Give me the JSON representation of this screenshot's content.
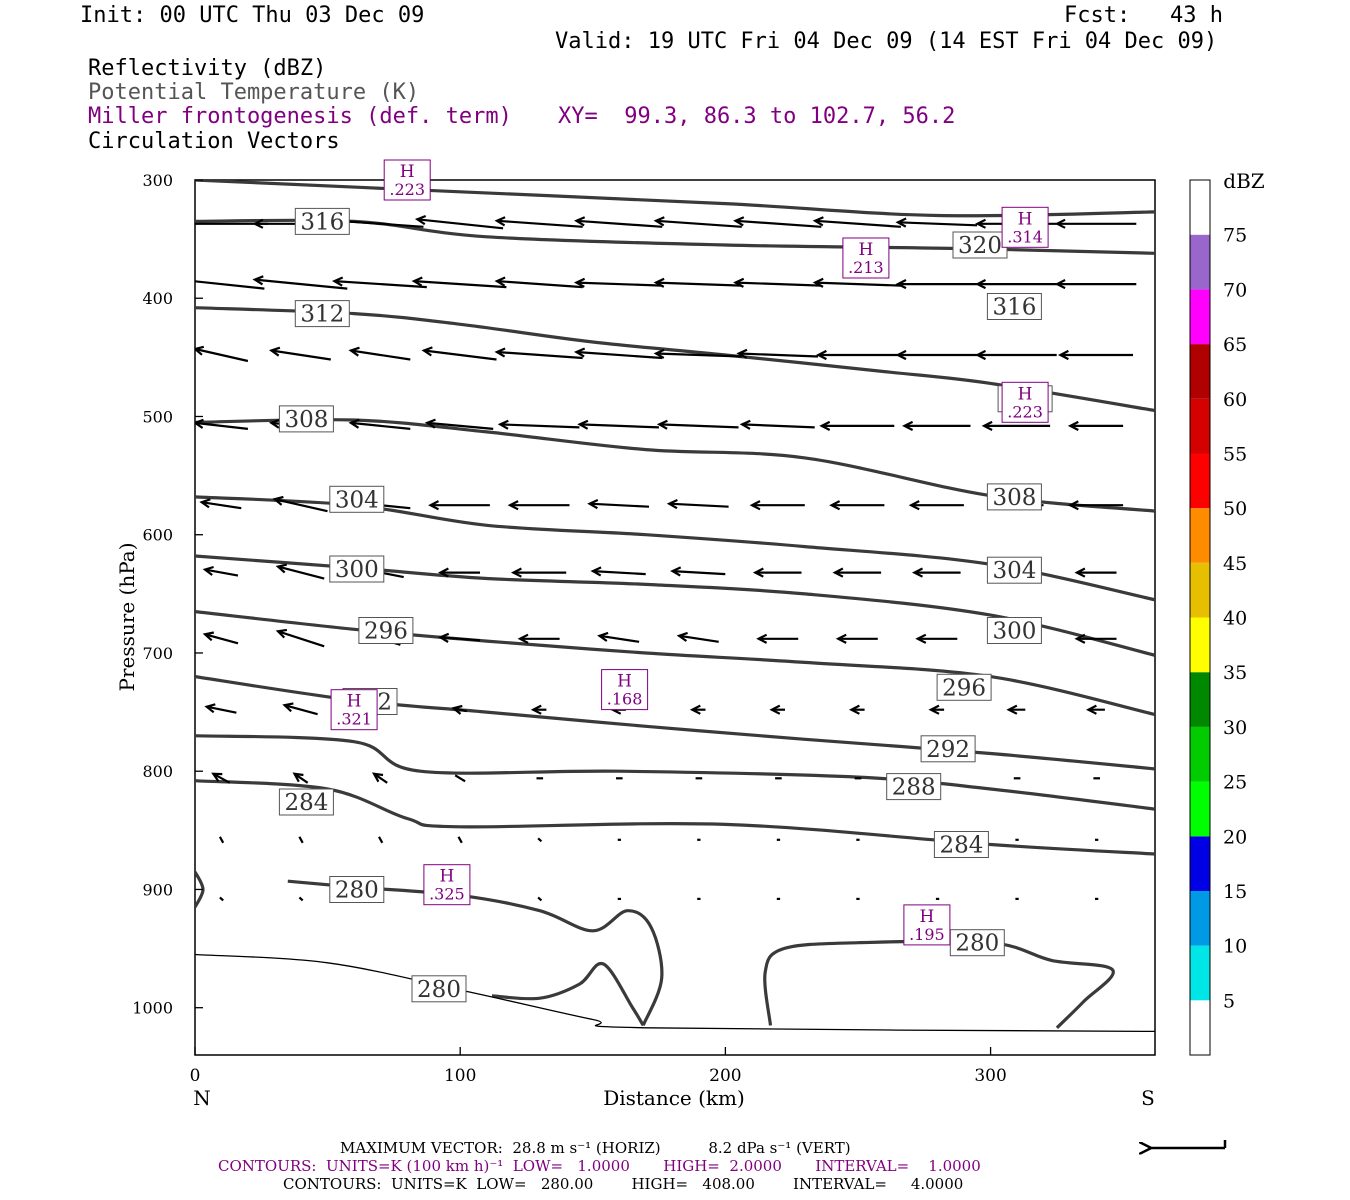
{
  "header": {
    "init": "Init: 00 UTC Thu 03 Dec 09",
    "fcst": "Fcst:   43 h",
    "valid": "Valid: 19 UTC Fri 04 Dec 09 (14 EST Fri 04 Dec 09)",
    "field1": "Reflectivity (dBZ)",
    "field2": "Potential Temperature (K)",
    "field3": "Miller frontogenesis (def. term)",
    "xy": "XY=  99.3, 86.3 to 102.7, 56.2",
    "field4": "Circulation Vectors"
  },
  "footer": {
    "max_vector": "MAXIMUM VECTOR:  28.8 m s⁻¹ (HORIZ)          8.2 dPa s⁻¹ (VERT)",
    "contours1": "CONTOURS:  UNITS=K (100 km h)⁻¹  LOW=   1.0000       HIGH=  2.0000       INTERVAL=    1.0000",
    "contours2": "CONTOURS:  UNITS=K  LOW=   280.00        HIGH=   408.00        INTERVAL=     4.0000"
  },
  "colors": {
    "theta": "#3a3a3a",
    "frontogenesis": "#800080",
    "vector": "#000000"
  },
  "chart_data": {
    "type": "cross-section",
    "xlabel": "Distance (km)",
    "ylabel": "Pressure (hPa)",
    "xlim": [
      0,
      362
    ],
    "ylim": [
      1040,
      300
    ],
    "x_ticks": [
      0,
      100,
      200,
      300
    ],
    "y_ticks": [
      300,
      400,
      500,
      600,
      700,
      800,
      900,
      1000
    ],
    "left_end_label": "N",
    "right_end_label": "S",
    "grid": false,
    "colorbar": {
      "title": "dBZ",
      "labels": [
        "5",
        "10",
        "15",
        "20",
        "25",
        "30",
        "35",
        "40",
        "45",
        "50",
        "55",
        "60",
        "65",
        "70",
        "75"
      ],
      "bins": [
        {
          "color": "#ffffff"
        },
        {
          "color": "#00e5e5"
        },
        {
          "color": "#0099e5"
        },
        {
          "color": "#0000e5"
        },
        {
          "color": "#00ff00"
        },
        {
          "color": "#00cc00"
        },
        {
          "color": "#008800"
        },
        {
          "color": "#ffff00"
        },
        {
          "color": "#e5bf00"
        },
        {
          "color": "#ff8c00"
        },
        {
          "color": "#ff0000"
        },
        {
          "color": "#d50000"
        },
        {
          "color": "#b00000"
        },
        {
          "color": "#ff00ff"
        },
        {
          "color": "#9966cc"
        },
        {
          "color": "#ffffff"
        }
      ]
    },
    "theta_contours": [
      {
        "level": 320,
        "points": [
          [
            0,
            300
          ],
          [
            100,
            310
          ],
          [
            200,
            320
          ],
          [
            280,
            330
          ],
          [
            362,
            327
          ]
        ]
      },
      {
        "level": 316,
        "points": [
          [
            0,
            335
          ],
          [
            60,
            335
          ],
          [
            110,
            348
          ],
          [
            200,
            355
          ],
          [
            290,
            358
          ],
          [
            362,
            362
          ]
        ]
      },
      {
        "level": 312,
        "points": [
          [
            0,
            408
          ],
          [
            60,
            413
          ],
          [
            100,
            422
          ],
          [
            150,
            437
          ],
          [
            200,
            448
          ],
          [
            260,
            462
          ],
          [
            300,
            472
          ],
          [
            362,
            495
          ]
        ]
      },
      {
        "level": 308,
        "points": [
          [
            0,
            505
          ],
          [
            60,
            503
          ],
          [
            110,
            513
          ],
          [
            170,
            528
          ],
          [
            230,
            535
          ],
          [
            300,
            567
          ],
          [
            362,
            580
          ]
        ]
      },
      {
        "level": 304,
        "points": [
          [
            0,
            568
          ],
          [
            60,
            575
          ],
          [
            110,
            592
          ],
          [
            170,
            600
          ],
          [
            230,
            610
          ],
          [
            300,
            625
          ],
          [
            362,
            655
          ]
        ]
      },
      {
        "level": 300,
        "points": [
          [
            0,
            618
          ],
          [
            60,
            628
          ],
          [
            110,
            637
          ],
          [
            170,
            642
          ],
          [
            230,
            650
          ],
          [
            300,
            668
          ],
          [
            362,
            702
          ]
        ]
      },
      {
        "level": 296,
        "points": [
          [
            0,
            665
          ],
          [
            60,
            680
          ],
          [
            110,
            690
          ],
          [
            170,
            700
          ],
          [
            230,
            708
          ],
          [
            300,
            720
          ],
          [
            362,
            752
          ]
        ]
      },
      {
        "level": 292,
        "points": [
          [
            0,
            720
          ],
          [
            60,
            740
          ],
          [
            110,
            750
          ],
          [
            170,
            762
          ],
          [
            230,
            773
          ],
          [
            300,
            785
          ],
          [
            362,
            798
          ]
        ]
      },
      {
        "level": 288,
        "points": [
          [
            0,
            770
          ],
          [
            60,
            775
          ],
          [
            85,
            800
          ],
          [
            160,
            800
          ],
          [
            250,
            805
          ],
          [
            300,
            815
          ],
          [
            362,
            832
          ]
        ]
      },
      {
        "level": 284,
        "points": [
          [
            0,
            808
          ],
          [
            50,
            815
          ],
          [
            80,
            840
          ],
          [
            100,
            847
          ],
          [
            200,
            845
          ],
          [
            300,
            862
          ],
          [
            362,
            870
          ]
        ]
      }
    ],
    "theta_280_segments": [
      [
        [
          0,
          885
        ],
        [
          3,
          900
        ],
        [
          0,
          915
        ]
      ],
      [
        [
          35,
          893
        ],
        [
          60,
          898
        ],
        [
          100,
          905
        ],
        [
          130,
          918
        ],
        [
          150,
          935
        ],
        [
          163,
          918
        ],
        [
          172,
          932
        ],
        [
          176,
          975
        ],
        [
          169,
          1015
        ]
      ],
      [
        [
          169,
          1015
        ],
        [
          165,
          1000
        ],
        [
          154,
          963
        ],
        [
          145,
          980
        ],
        [
          130,
          992
        ],
        [
          112,
          990
        ]
      ],
      [
        [
          217,
          1015
        ],
        [
          215,
          970
        ],
        [
          222,
          950
        ],
        [
          250,
          945
        ],
        [
          300,
          945
        ],
        [
          323,
          960
        ],
        [
          346,
          968
        ],
        [
          335,
          995
        ],
        [
          325,
          1017
        ]
      ]
    ],
    "surface_boundary": [
      [
        0,
        955
      ],
      [
        50,
        962
      ],
      [
        100,
        985
      ],
      [
        150,
        1010
      ],
      [
        170,
        1017
      ],
      [
        362,
        1020
      ]
    ],
    "theta_labels": [
      {
        "text": "316",
        "x": 48,
        "p": 335
      },
      {
        "text": "320",
        "x": 296,
        "p": 355
      },
      {
        "text": "312",
        "x": 48,
        "p": 413
      },
      {
        "text": "316",
        "x": 309,
        "p": 407
      },
      {
        "text": "312",
        "x": 313,
        "p": 485
      },
      {
        "text": "308",
        "x": 42,
        "p": 502
      },
      {
        "text": "304",
        "x": 61,
        "p": 570
      },
      {
        "text": "308",
        "x": 309,
        "p": 568
      },
      {
        "text": "300",
        "x": 61,
        "p": 629
      },
      {
        "text": "304",
        "x": 309,
        "p": 630
      },
      {
        "text": "296",
        "x": 72,
        "p": 681
      },
      {
        "text": "300",
        "x": 309,
        "p": 681
      },
      {
        "text": "292",
        "x": 66,
        "p": 741
      },
      {
        "text": "296",
        "x": 290,
        "p": 729
      },
      {
        "text": "292",
        "x": 284,
        "p": 781
      },
      {
        "text": "288",
        "x": 271,
        "p": 813
      },
      {
        "text": "284",
        "x": 42,
        "p": 826
      },
      {
        "text": "284",
        "x": 289,
        "p": 862
      },
      {
        "text": "280",
        "x": 61,
        "p": 900
      },
      {
        "text": "280",
        "x": 295,
        "p": 945
      },
      {
        "text": "280",
        "x": 92,
        "p": 984
      }
    ],
    "frontogenesis_highs": [
      {
        "label": "H",
        "value": ".223",
        "x": 80,
        "p": 300
      },
      {
        "label": "H",
        "value": ".314",
        "x": 313,
        "p": 340
      },
      {
        "label": "H",
        "value": ".213",
        "x": 253,
        "p": 366
      },
      {
        "label": "H",
        "value": ".223",
        "x": 313,
        "p": 488
      },
      {
        "label": "H",
        "value": ".168",
        "x": 162,
        "p": 731
      },
      {
        "label": "H",
        "value": ".321",
        "x": 60,
        "p": 748
      },
      {
        "label": "H",
        "value": ".325",
        "x": 95,
        "p": 896
      },
      {
        "label": "H",
        "value": ".195",
        "x": 276,
        "p": 930
      }
    ],
    "vector_rows": [
      {
        "p": 337,
        "u": [
          -28,
          -28,
          -26,
          -26,
          -26,
          -26,
          -26,
          -26,
          -26,
          -24,
          -24,
          -24
        ],
        "w": [
          0,
          0,
          -2,
          -3,
          -2,
          -2,
          -2,
          -2,
          -2,
          -1,
          0,
          0
        ]
      },
      {
        "p": 388,
        "u": [
          -26,
          -28,
          -28,
          -28,
          -26,
          -26,
          -26,
          -26,
          -26,
          -24,
          -24,
          -24
        ],
        "w": [
          -3,
          -3,
          -2,
          -2,
          -2,
          -1,
          -1,
          -1,
          -1,
          0,
          0,
          0
        ]
      },
      {
        "p": 448,
        "u": [
          -16,
          -18,
          -18,
          -22,
          -26,
          -26,
          -26,
          -24,
          -24,
          -24,
          -24,
          -22
        ],
        "w": [
          -4,
          -3,
          -3,
          -3,
          -2,
          -2,
          -1,
          -1,
          0,
          0,
          0,
          0
        ]
      },
      {
        "p": 508,
        "u": [
          -16,
          -18,
          -18,
          -20,
          -24,
          -24,
          -24,
          -22,
          -22,
          -20,
          -20,
          -16
        ],
        "w": [
          -2,
          -2,
          -2,
          -2,
          -1,
          -1,
          -1,
          -1,
          0,
          0,
          0,
          0
        ]
      },
      {
        "p": 575,
        "u": [
          -12,
          -16,
          -18,
          -18,
          -18,
          -18,
          -18,
          -16,
          -16,
          -16,
          -16,
          -16
        ],
        "w": [
          -2,
          -4,
          -2,
          0,
          0,
          -1,
          -1,
          0,
          0,
          0,
          0,
          0
        ]
      },
      {
        "p": 632,
        "u": [
          -10,
          -14,
          -14,
          -12,
          -16,
          -16,
          -16,
          -14,
          -14,
          -14,
          -12,
          -12
        ],
        "w": [
          -2,
          -4,
          -3,
          0,
          0,
          -1,
          -1,
          0,
          0,
          0,
          0,
          0
        ]
      },
      {
        "p": 688,
        "u": [
          -10,
          -14,
          -12,
          -12,
          -12,
          -12,
          -12,
          -12,
          -12,
          -12,
          -12,
          -12
        ],
        "w": [
          -3,
          -5,
          -4,
          -1,
          0,
          -2,
          -2,
          0,
          0,
          0,
          0,
          0
        ]
      },
      {
        "p": 748,
        "u": [
          -9,
          -10,
          -6,
          -4,
          -4,
          -4,
          -4,
          -4,
          -4,
          -4,
          -5,
          -5
        ],
        "w": [
          -2,
          -3,
          -3,
          -1,
          0,
          0,
          0,
          0,
          0,
          0,
          0,
          0
        ]
      },
      {
        "p": 806,
        "u": [
          -5,
          -4,
          -4,
          -3,
          -2,
          -2,
          -2,
          -2,
          -2,
          -2,
          -2,
          -2
        ],
        "w": [
          -3,
          -3,
          -3,
          -2,
          0,
          0,
          0,
          0,
          0,
          0,
          0,
          0
        ]
      },
      {
        "p": 858,
        "u": [
          -1,
          -1,
          -1,
          -1,
          -1,
          -1,
          -1,
          -1,
          -1,
          -1,
          -1,
          -1
        ],
        "w": [
          -2,
          -2,
          -2,
          -2,
          -1,
          0,
          0,
          0,
          0,
          0,
          0,
          0
        ]
      },
      {
        "p": 908,
        "u": [
          -1,
          -1,
          -1,
          -1,
          -1,
          -1,
          -1,
          -1,
          -1,
          -1,
          -1,
          -1
        ],
        "w": [
          -1,
          -1,
          -1,
          -1,
          -1,
          0,
          0,
          0,
          0,
          0,
          0,
          0
        ]
      }
    ],
    "vector_x": [
      10,
      40,
      70,
      100,
      130,
      160,
      190,
      220,
      250,
      280,
      310,
      340
    ]
  }
}
